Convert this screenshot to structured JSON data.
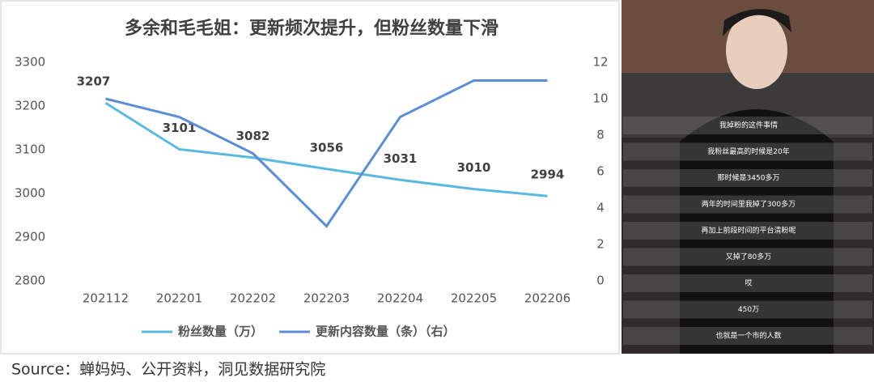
{
  "chart_data": {
    "type": "line",
    "title": "多余和毛毛姐：更新频次提升，但粉丝数量下滑",
    "categories": [
      "202112",
      "202201",
      "202202",
      "202203",
      "202204",
      "202205",
      "202206"
    ],
    "series": [
      {
        "name": "粉丝数量（万）",
        "color": "#5bb8e0",
        "values": [
          3207,
          3101,
          3082,
          3056,
          3031,
          3010,
          2994
        ]
      },
      {
        "name": "更新内容数量（条）（右）",
        "color": "#5b8ed6",
        "axis": "y2",
        "values": [
          10,
          9,
          7,
          3,
          9,
          11,
          11
        ]
      }
    ],
    "ylim": [
      2800,
      3300
    ],
    "yticks": [
      2800,
      2900,
      3000,
      3100,
      3200,
      3300
    ],
    "y2lim": [
      0,
      12
    ],
    "y2ticks": [
      0,
      2,
      4,
      6,
      8,
      10,
      12
    ],
    "legend": "bottom"
  },
  "source": "Source：蝉妈妈、公开资料，洞见数据研究院",
  "photo": {
    "captions": [
      "我掉粉的这件事情",
      "我粉丝最高的时候是20年",
      "那时候是3450多万",
      "两年的时间里我掉了300多万",
      "再加上前段时间的平台清粉呢",
      "又掉了80多万",
      "哎",
      "450万",
      "也就是一个市的人数"
    ]
  }
}
